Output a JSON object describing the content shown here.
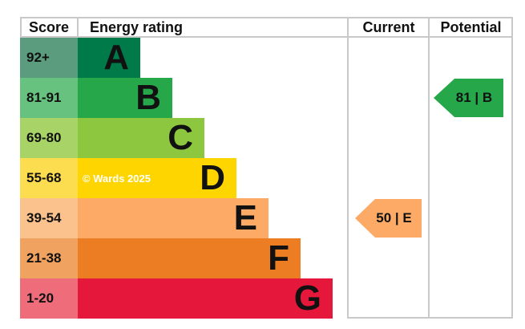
{
  "headers": {
    "score": "Score",
    "energy_rating": "Energy rating",
    "current": "Current",
    "potential": "Potential"
  },
  "bands": [
    {
      "score_range": "92+",
      "letter": "A",
      "bar_color": "#017a4a",
      "score_tint": "#5b9c7e"
    },
    {
      "score_range": "81-91",
      "letter": "B",
      "bar_color": "#26a74a",
      "score_tint": "#66c27e"
    },
    {
      "score_range": "69-80",
      "letter": "C",
      "bar_color": "#8dc63f",
      "score_tint": "#a8d467"
    },
    {
      "score_range": "55-68",
      "letter": "D",
      "bar_color": "#ffd500",
      "score_tint": "#fcdd4f"
    },
    {
      "score_range": "39-54",
      "letter": "E",
      "bar_color": "#fcaa65",
      "score_tint": "#fcc28e"
    },
    {
      "score_range": "21-38",
      "letter": "F",
      "bar_color": "#ec7d23",
      "score_tint": "#f0a360"
    },
    {
      "score_range": "1-20",
      "letter": "G",
      "bar_color": "#e5173b",
      "score_tint": "#ef6d7a"
    }
  ],
  "current": {
    "value": "50",
    "letter": "E",
    "label": "50 | E",
    "arrow_color": "#fcaa65"
  },
  "potential": {
    "value": "81",
    "letter": "B",
    "label": "81 | B",
    "arrow_color": "#26a74a"
  },
  "watermark": "© Wards 2025",
  "border_color": "#c9c9c9",
  "chart_data": {
    "type": "bar",
    "title": "Energy rating",
    "categories": [
      "A",
      "B",
      "C",
      "D",
      "E",
      "F",
      "G"
    ],
    "score_ranges": [
      "92+",
      "81-91",
      "69-80",
      "55-68",
      "39-54",
      "21-38",
      "1-20"
    ],
    "band_colors": [
      "#017a4a",
      "#26a74a",
      "#8dc63f",
      "#ffd500",
      "#fcaa65",
      "#ec7d23",
      "#e5173b"
    ],
    "bar_lengths_relative": [
      1,
      2,
      3,
      4,
      5,
      6,
      7
    ],
    "columns": [
      "Score",
      "Energy rating",
      "Current",
      "Potential"
    ],
    "current": {
      "score": 50,
      "rating": "E"
    },
    "potential": {
      "score": 81,
      "rating": "B"
    },
    "legend_position": "none",
    "grid": "off"
  }
}
